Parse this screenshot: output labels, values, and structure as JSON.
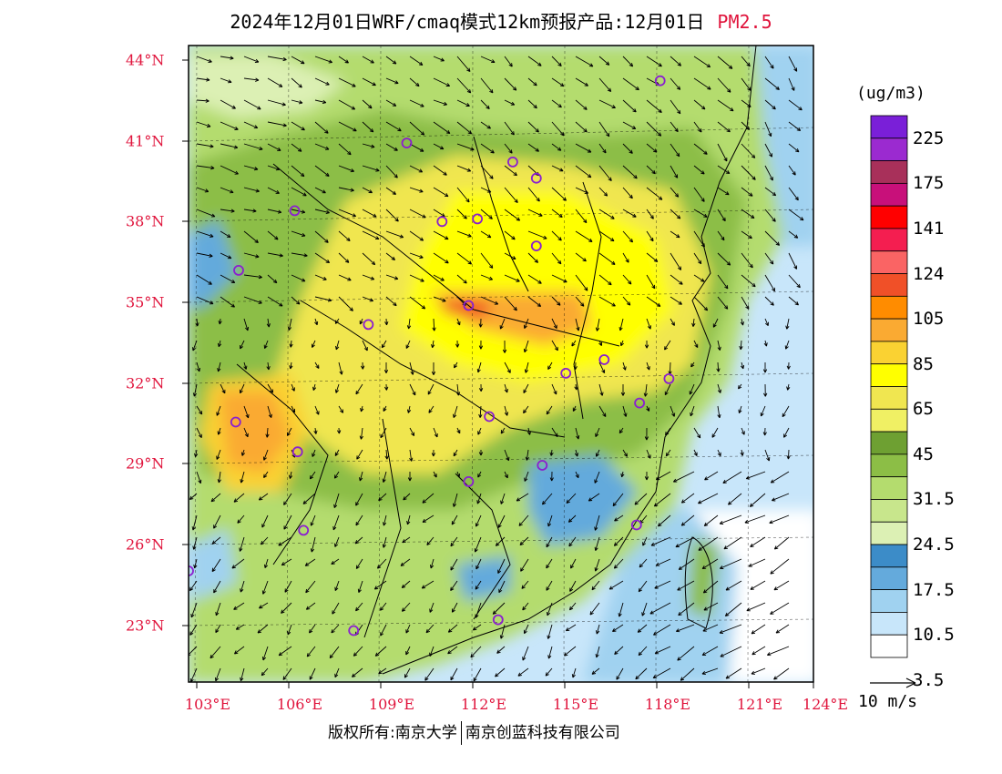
{
  "title": {
    "main": "2024年12月01日WRF/cmaq模式12km预报产品:12月01日",
    "pollutant": "PM2.5"
  },
  "units": "(ug/m3)",
  "legend": {
    "labels": [
      "225",
      "175",
      "141",
      "124",
      "105",
      "85",
      "65",
      "45",
      "31.5",
      "24.5",
      "17.5",
      "10.5",
      "3.5"
    ],
    "colors": [
      "#7a1fd8",
      "#9b2ad0",
      "#a8305a",
      "#c8107a",
      "#ff0000",
      "#f41e50",
      "#fa6464",
      "#f05028",
      "#ff8c00",
      "#faaa32",
      "#fad232",
      "#ffff00",
      "#f0e650",
      "#f0f064",
      "#6ea032",
      "#8cbe46",
      "#b4dc6e",
      "#c8e68c",
      "#dcf0b4",
      "#3c8cc8",
      "#64aadc",
      "#a0d2f0",
      "#c8e6fa",
      "#ffffff"
    ]
  },
  "wind_reference": "10 m/s",
  "copyright": {
    "left": "版权所有:南京大学",
    "right": "南京创蓝科技有限公司"
  },
  "axes": {
    "lat_labels": [
      "44°N",
      "41°N",
      "38°N",
      "35°N",
      "32°N",
      "29°N",
      "26°N",
      "23°N"
    ],
    "lon_labels": [
      "103°E",
      "106°E",
      "109°E",
      "112°E",
      "115°E",
      "118°E",
      "121°E",
      "124°E"
    ],
    "lat_range": [
      21,
      44.5
    ],
    "lon_range": [
      102.8,
      124
    ]
  },
  "stations": [
    [
      118.8,
      43.2
    ],
    [
      110.2,
      40.9
    ],
    [
      113.8,
      40.2
    ],
    [
      114.6,
      39.6
    ],
    [
      106.4,
      38.4
    ],
    [
      111.4,
      38.0
    ],
    [
      112.6,
      38.1
    ],
    [
      114.6,
      37.1
    ],
    [
      104.5,
      36.2
    ],
    [
      112.3,
      34.9
    ],
    [
      108.9,
      34.2
    ],
    [
      116.9,
      32.9
    ],
    [
      115.6,
      32.4
    ],
    [
      119.1,
      32.2
    ],
    [
      104.4,
      30.6
    ],
    [
      113.0,
      30.8
    ],
    [
      118.1,
      31.3
    ],
    [
      106.5,
      29.5
    ],
    [
      114.8,
      29.0
    ],
    [
      112.3,
      28.4
    ],
    [
      106.7,
      26.6
    ],
    [
      118.0,
      26.8
    ],
    [
      102.8,
      25.1
    ],
    [
      108.4,
      22.9
    ],
    [
      113.3,
      23.3
    ]
  ]
}
